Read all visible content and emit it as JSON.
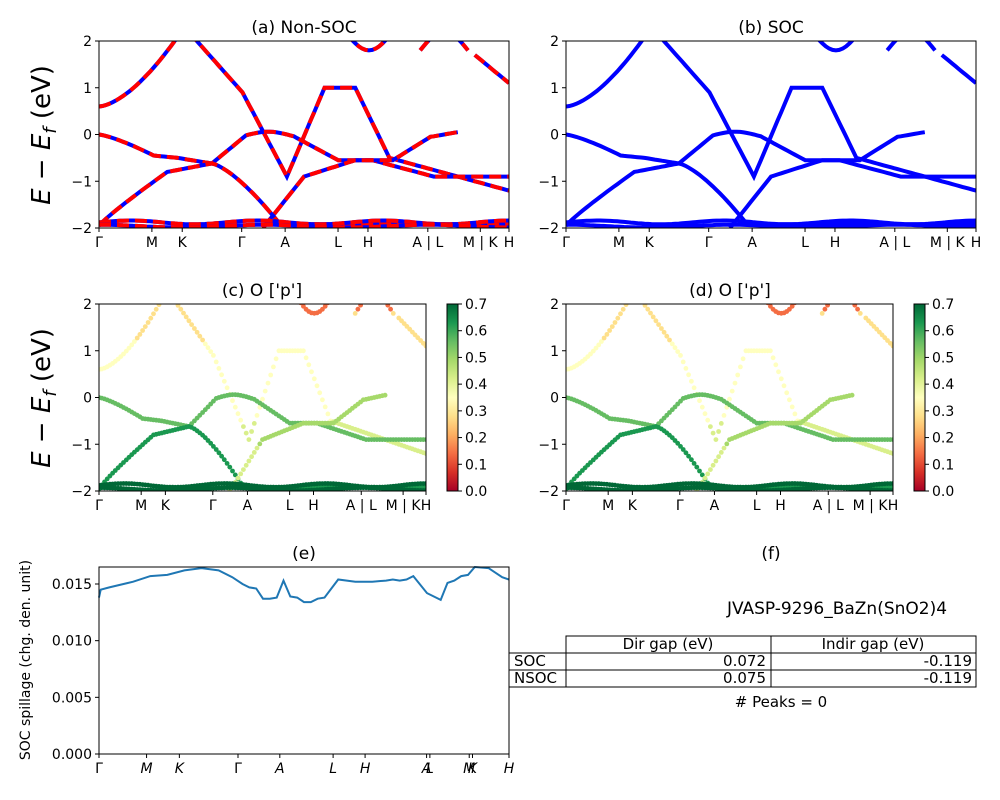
{
  "chart_data": [
    {
      "panel": "a",
      "type": "line",
      "title": "(a) Non-SOC",
      "ylabel_main": "E − E",
      "ylabel_sub": "f",
      "ylabel_unit": " (eV)",
      "ylim": [
        -2,
        2
      ],
      "yticks": [
        "2",
        "1",
        "0",
        "−1",
        "−2"
      ],
      "xticks": [
        "Γ",
        "M",
        "K",
        "Γ",
        "A",
        "L",
        "H",
        "A | L",
        "M | K",
        "H"
      ],
      "series_colors": [
        "#0000ff",
        "#ff0000"
      ],
      "series": [
        {
          "band": 1,
          "segments": [
            {
              "x": [
                0,
                0.5,
                1,
                1.5,
                2.0,
                2.5,
                3.0,
                3.5,
                4.0,
                4.5,
                5.0,
                5.5,
                6.0,
                6.5,
                7.0,
                7.5,
                8.0,
                8.5
              ],
              "y": [
                0.6,
                0.7,
                1.0,
                1.5,
                1.95,
                2.2,
                2.0,
                1.6,
                1.0,
                0.4,
                -0.3,
                -0.7,
                -0.8,
                -0.6,
                -0.3,
                0.1,
                0.6,
                1.0
              ]
            },
            {
              "x": [
                8.5,
                9.0,
                9.5,
                10.0,
                10.5,
                11.0,
                11.5,
                12.0
              ],
              "y": [
                1.0,
                1.0,
                0.98,
                0.95,
                0.9,
                0.5,
                0.0,
                -0.5
              ]
            }
          ]
        },
        {
          "band": 2,
          "segments": [
            {
              "x": [
                0,
                0.5,
                1,
                1.5,
                2.0,
                2.5,
                3.0,
                3.2,
                3.6,
                4.0
              ],
              "y": [
                0.0,
                -0.05,
                -0.2,
                -0.45,
                -0.5,
                -0.55,
                -0.6,
                -0.6,
                -0.6,
                -0.55
              ]
            },
            {
              "x": [
                4.0,
                4.5,
                5.0,
                5.5,
                6.0,
                6.5,
                7.0,
                7.5,
                8.0,
                8.5,
                9.0,
                9.5,
                10.0,
                10.5
              ],
              "y": [
                -0.55,
                -0.4,
                -0.2,
                0.0,
                0.03,
                0.05,
                -0.05,
                -0.5,
                -0.9,
                -0.7,
                -0.55,
                -0.55,
                -0.55,
                -0.5
              ]
            }
          ]
        }
      ]
    },
    {
      "panel": "b",
      "type": "line",
      "title": "(b) SOC",
      "ylim": [
        -2,
        2
      ],
      "yticks": [
        "2",
        "1",
        "0",
        "−1",
        "−2"
      ],
      "xticks": [
        "Γ",
        "M",
        "K",
        "Γ",
        "A",
        "L",
        "H",
        "A | L",
        "M | K",
        "H"
      ]
    },
    {
      "panel": "c",
      "type": "scatter",
      "title": "(c)  O ['p']",
      "ylabel_main": "E − E",
      "ylabel_sub": "f",
      "ylabel_unit": " (eV)",
      "ylim": [
        -2,
        2
      ],
      "yticks": [
        "2",
        "1",
        "0",
        "−1",
        "−2"
      ],
      "xticks": [
        "Γ",
        "M",
        "K",
        "Γ",
        "A",
        "L",
        "H",
        "A | L",
        "M | K",
        "H"
      ],
      "colorbar_ticks": [
        "0.7",
        "0.6",
        "0.5",
        "0.4",
        "0.3",
        "0.2",
        "0.1",
        "0.0"
      ],
      "colorbar_range": [
        0.0,
        0.7
      ]
    },
    {
      "panel": "d",
      "type": "scatter",
      "title": "(d) O ['p']",
      "ylim": [
        -2,
        2
      ],
      "yticks": [
        "2",
        "1",
        "0",
        "−1",
        "−2"
      ],
      "xticks": [
        "Γ",
        "M",
        "K",
        "Γ",
        "A",
        "L",
        "H",
        "A | L",
        "M | K",
        "H"
      ],
      "colorbar_ticks": [
        "0.7",
        "0.6",
        "0.5",
        "0.4",
        "0.3",
        "0.2",
        "0.1",
        "0.0"
      ],
      "colorbar_range": [
        0.0,
        0.7
      ]
    },
    {
      "panel": "e",
      "type": "line",
      "title": "(e)",
      "ylabel": "SOC spillage (chg. den. unit)",
      "ylim": [
        0.0,
        0.0165
      ],
      "yticks": [
        "0.015",
        "0.010",
        "0.005",
        "0.000"
      ],
      "xticks": [
        "Γ",
        "M",
        "K",
        "Γ",
        "A",
        "L",
        "H",
        "A",
        "L",
        "M",
        "K",
        "H"
      ],
      "series_color": "#1f77b4",
      "x": [
        0,
        0.05,
        0.3,
        1.0,
        1.5,
        2.0,
        2.5,
        3.0,
        3.5,
        3.9,
        4.2,
        4.4,
        4.6,
        4.8,
        5.0,
        5.2,
        5.4,
        5.6,
        5.8,
        6.0,
        6.2,
        6.4,
        6.6,
        7.0,
        7.5,
        8.0,
        8.4,
        8.6,
        8.8,
        9.0,
        9.2,
        9.6,
        10.0,
        10.2,
        10.4,
        10.6,
        10.8,
        11.0,
        11.4,
        11.8,
        12.0
      ],
      "y": [
        0.0138,
        0.0145,
        0.0147,
        0.0152,
        0.0157,
        0.0158,
        0.0162,
        0.0164,
        0.0162,
        0.0156,
        0.015,
        0.0147,
        0.0146,
        0.0137,
        0.0137,
        0.0138,
        0.0153,
        0.0139,
        0.0138,
        0.0134,
        0.0134,
        0.0137,
        0.0138,
        0.0154,
        0.0152,
        0.0152,
        0.0153,
        0.0154,
        0.0153,
        0.0154,
        0.0157,
        0.0142,
        0.0136,
        0.0151,
        0.0153,
        0.0157,
        0.0158,
        0.0165,
        0.0164,
        0.0156,
        0.0154
      ]
    }
  ],
  "panel_f": {
    "title": "(f)",
    "material": "JVASP-9296_BaZn(SnO2)4",
    "table_headers": [
      "",
      "Dir gap (eV)",
      "Indir gap (eV)"
    ],
    "rows": [
      {
        "label": "SOC",
        "dir": "0.072",
        "indir": "-0.119"
      },
      {
        "label": "NSOC",
        "dir": "0.075",
        "indir": "-0.119"
      }
    ],
    "peaks": "# Peaks = 0"
  }
}
